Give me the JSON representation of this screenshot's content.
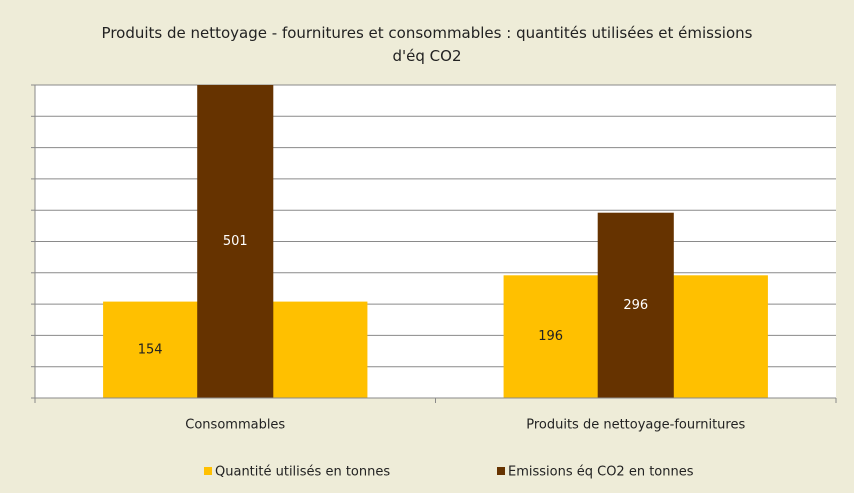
{
  "chart_data": {
    "type": "bar",
    "title": "Produits de nettoyage - fournitures et consommables : quantités utilisées et émissions d'éq CO2",
    "categories": [
      "Consommables",
      "Produits de nettoyage-fournitures"
    ],
    "series": [
      {
        "name": "Quantité utilisés en tonnes",
        "color": "#ffc000",
        "values": [
          154,
          196
        ]
      },
      {
        "name": "Emissions éq CO2 en tonnes",
        "color": "#663300",
        "values": [
          501,
          296
        ]
      }
    ],
    "ylim": [
      0,
      500
    ],
    "yticks": [
      0,
      50,
      100,
      150,
      200,
      250,
      300,
      350,
      400,
      450,
      500
    ],
    "grid": true,
    "legend": "bottom"
  }
}
